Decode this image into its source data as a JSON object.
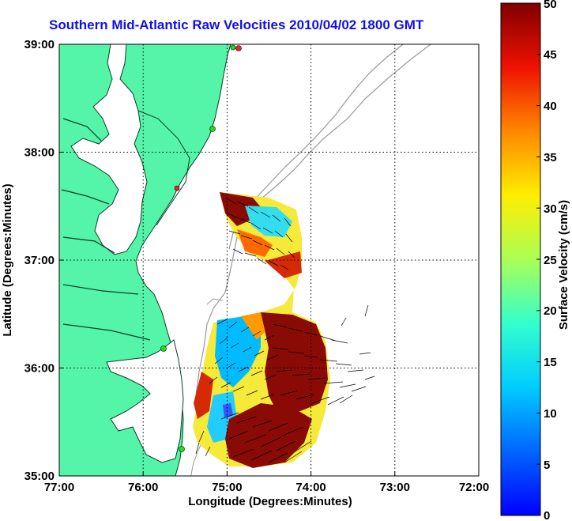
{
  "title": "Southern Mid-Atlantic Raw Velocities 2010/04/02 1800 GMT",
  "xlabel": "Longitude (Degrees:Minutes)",
  "ylabel": "Latitude (Degrees:Minutes)",
  "x_ticks": [
    "77:00",
    "76:00",
    "75:00",
    "74:00",
    "73:00",
    "72:00"
  ],
  "y_ticks": [
    "39:00",
    "38:00",
    "37:00",
    "36:00",
    "35:00"
  ],
  "colorbar": {
    "label": "Surface Velocity (cm/s)",
    "ticks": [
      "50",
      "45",
      "40",
      "35",
      "30",
      "25",
      "20",
      "15",
      "10",
      "5",
      "0"
    ],
    "range": [
      0,
      50
    ],
    "colormap": "jet"
  },
  "chart_data": {
    "type": "heatmap",
    "title": "Southern Mid-Atlantic Raw Velocities 2010/04/02 1800 GMT",
    "xlabel": "Longitude (Degrees:Minutes)",
    "ylabel": "Latitude (Degrees:Minutes)",
    "xlim": [
      -77,
      -72
    ],
    "ylim": [
      35,
      39
    ],
    "grid": true,
    "value_label": "Surface Velocity (cm/s)",
    "value_range": [
      0,
      50
    ]
  },
  "colors": {
    "land": "#55f5a9",
    "title": "#1010e8",
    "grid": "#000000",
    "contour": "#999999",
    "station_green": "#22dd22",
    "station_red": "#ee2222"
  }
}
